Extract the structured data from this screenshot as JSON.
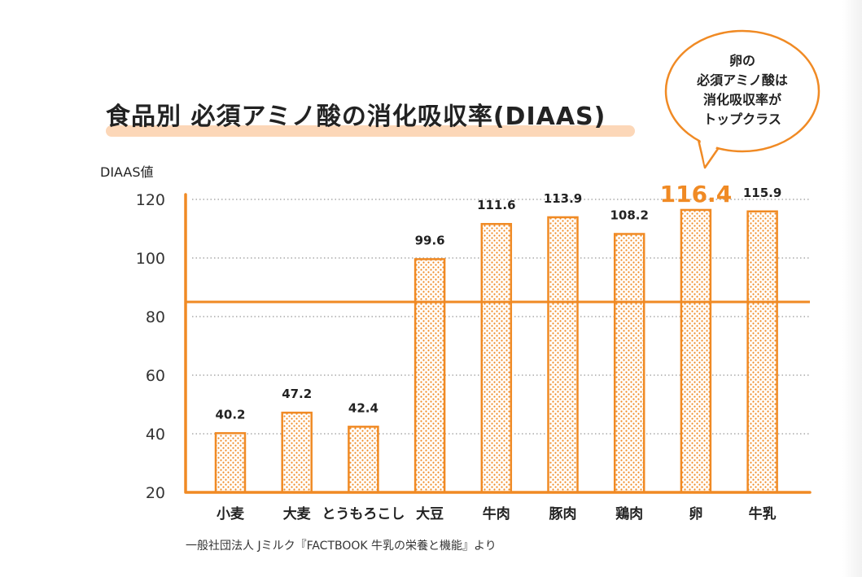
{
  "chart_data": {
    "type": "bar",
    "title": "食品別 必須アミノ酸の消化吸収率(DIAAS)",
    "ylabel": "DIAAS値",
    "xlabel": "",
    "categories": [
      "小麦",
      "大麦",
      "とうもろこし",
      "大豆",
      "牛肉",
      "豚肉",
      "鶏肉",
      "卵",
      "牛乳"
    ],
    "values": [
      40.2,
      47.2,
      42.4,
      99.6,
      111.6,
      113.9,
      108.2,
      116.4,
      115.9
    ],
    "data_labels": [
      "40.2",
      "47.2",
      "42.4",
      "99.6",
      "111.6",
      "113.9",
      "108.2",
      "116.4",
      "115.9"
    ],
    "highlight_index": 7,
    "ylim": [
      20,
      120
    ],
    "yticks": [
      "20",
      "40",
      "60",
      "80",
      "100",
      "120"
    ],
    "reference_line": 85,
    "grid": "dotted horizontal",
    "bar_style": "orange outline with dot pattern",
    "colors": {
      "accent": "#f08a24",
      "highlight_band": "#fcd7b8",
      "text": "#222222"
    },
    "annotation": [
      "卵の",
      "必須アミノ酸は",
      "消化吸収率が",
      "トップクラス"
    ],
    "source": "一般社団法人 Jミルク『FACTBOOK 牛乳の栄養と機能』より"
  }
}
